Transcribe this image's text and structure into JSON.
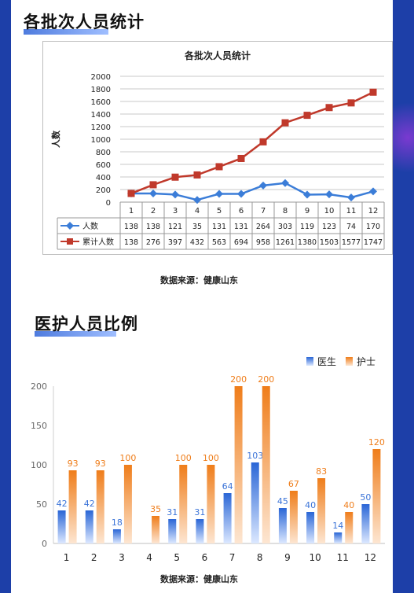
{
  "section1": {
    "heading": "各批次人员统计",
    "source": "数据来源：健康山东"
  },
  "section2": {
    "heading": "医护人员比例",
    "source": "数据来源：健康山东"
  },
  "colors": {
    "people": "#3b7dd8",
    "cumulative": "#c0392b",
    "doctor": "#2a66d6",
    "nurse": "#ef7d1a",
    "label_doctor": "#3a73d8",
    "label_nurse": "#ef7d1a"
  },
  "chart_data": [
    {
      "type": "line",
      "title": "各批次人员统计",
      "ylabel": "人数",
      "ylim": [
        0,
        2000
      ],
      "yticks": [
        0,
        200,
        400,
        600,
        800,
        1000,
        1200,
        1400,
        1600,
        1800,
        2000
      ],
      "categories": [
        "1",
        "2",
        "3",
        "4",
        "5",
        "6",
        "7",
        "8",
        "9",
        "10",
        "11",
        "12"
      ],
      "series": [
        {
          "name": "人数",
          "values": [
            138,
            138,
            121,
            35,
            131,
            131,
            264,
            303,
            119,
            123,
            74,
            170
          ]
        },
        {
          "name": "累计人数",
          "values": [
            138,
            276,
            397,
            432,
            563,
            694,
            958,
            1261,
            1380,
            1503,
            1577,
            1747
          ]
        }
      ],
      "grid": true,
      "data_table": true
    },
    {
      "type": "bar",
      "categories": [
        "1",
        "2",
        "3",
        "4",
        "5",
        "6",
        "7",
        "8",
        "9",
        "10",
        "11",
        "12"
      ],
      "series": [
        {
          "name": "医生",
          "values": [
            42,
            42,
            18,
            null,
            31,
            31,
            64,
            103,
            45,
            40,
            14,
            50
          ]
        },
        {
          "name": "护士",
          "values": [
            93,
            93,
            100,
            35,
            100,
            100,
            200,
            200,
            67,
            83,
            40,
            120
          ]
        }
      ],
      "ylim": [
        0,
        200
      ],
      "yticks": [
        0,
        50,
        100,
        150,
        200
      ],
      "legend": "top-right",
      "grid": false
    }
  ]
}
